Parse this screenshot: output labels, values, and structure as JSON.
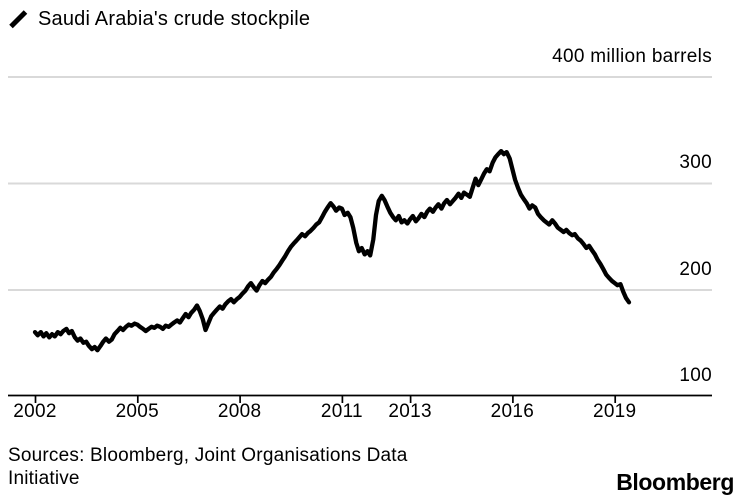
{
  "colors": {
    "background": "#ffffff",
    "line": "#000000",
    "grid": "#d9d9d9",
    "axis": "#000000",
    "text": "#000000"
  },
  "legend": {
    "marker": "diagonal-line-swatch",
    "label": "Saudi Arabia's crude stockpile"
  },
  "y_axis": {
    "labels": [
      {
        "value": 400,
        "text": "400 million barrels"
      },
      {
        "value": 300,
        "text": "300"
      },
      {
        "value": 200,
        "text": "200"
      },
      {
        "value": 100,
        "text": "100"
      }
    ]
  },
  "x_axis": {
    "ticks": [
      {
        "year": 2002,
        "label": "2002"
      },
      {
        "year": 2005,
        "label": "2005"
      },
      {
        "year": 2008,
        "label": "2008"
      },
      {
        "year": 2011,
        "label": "2011"
      },
      {
        "year": 2013,
        "label": "2013"
      },
      {
        "year": 2016,
        "label": "2016"
      },
      {
        "year": 2019,
        "label": "2019"
      }
    ]
  },
  "source": {
    "line1": "Sources: Bloomberg, Joint Organisations Data",
    "line2": "Initiative"
  },
  "branding": {
    "logo_text": "Bloomberg"
  },
  "chart_data": {
    "type": "line",
    "title": "Saudi Arabia's crude stockpile",
    "xlabel": "",
    "ylabel": "million barrels",
    "unit": "million barrels",
    "ylim": [
      100,
      400
    ],
    "x_range": [
      2002.0,
      2019.42
    ],
    "y_gridlines": [
      200,
      300,
      400
    ],
    "x_tick_years": [
      2002,
      2005,
      2008,
      2011,
      2013,
      2016,
      2019
    ],
    "grid": true,
    "legend_position": "top-left",
    "series": [
      {
        "name": "Saudi Arabia's crude stockpile",
        "color": "#000000",
        "points": [
          [
            2002.0,
            160
          ],
          [
            2002.08,
            157
          ],
          [
            2002.17,
            160
          ],
          [
            2002.25,
            156
          ],
          [
            2002.33,
            159
          ],
          [
            2002.42,
            155
          ],
          [
            2002.5,
            158
          ],
          [
            2002.58,
            156
          ],
          [
            2002.67,
            160
          ],
          [
            2002.75,
            158
          ],
          [
            2002.83,
            161
          ],
          [
            2002.92,
            163
          ],
          [
            2003.0,
            159
          ],
          [
            2003.08,
            161
          ],
          [
            2003.17,
            155
          ],
          [
            2003.25,
            152
          ],
          [
            2003.33,
            154
          ],
          [
            2003.42,
            150
          ],
          [
            2003.5,
            151
          ],
          [
            2003.58,
            147
          ],
          [
            2003.67,
            144
          ],
          [
            2003.75,
            146
          ],
          [
            2003.83,
            143
          ],
          [
            2003.92,
            147
          ],
          [
            2004.0,
            151
          ],
          [
            2004.08,
            154
          ],
          [
            2004.17,
            151
          ],
          [
            2004.25,
            153
          ],
          [
            2004.33,
            158
          ],
          [
            2004.42,
            161
          ],
          [
            2004.5,
            164
          ],
          [
            2004.58,
            162
          ],
          [
            2004.67,
            165
          ],
          [
            2004.75,
            167
          ],
          [
            2004.83,
            166
          ],
          [
            2004.92,
            168
          ],
          [
            2005.0,
            167
          ],
          [
            2005.08,
            165
          ],
          [
            2005.17,
            163
          ],
          [
            2005.25,
            161
          ],
          [
            2005.33,
            163
          ],
          [
            2005.42,
            165
          ],
          [
            2005.5,
            164
          ],
          [
            2005.58,
            166
          ],
          [
            2005.67,
            165
          ],
          [
            2005.75,
            163
          ],
          [
            2005.83,
            166
          ],
          [
            2005.92,
            165
          ],
          [
            2006.0,
            167
          ],
          [
            2006.08,
            169
          ],
          [
            2006.17,
            171
          ],
          [
            2006.25,
            169
          ],
          [
            2006.33,
            173
          ],
          [
            2006.42,
            177
          ],
          [
            2006.5,
            174
          ],
          [
            2006.58,
            178
          ],
          [
            2006.67,
            181
          ],
          [
            2006.75,
            185
          ],
          [
            2006.83,
            180
          ],
          [
            2006.92,
            172
          ],
          [
            2007.0,
            162
          ],
          [
            2007.08,
            168
          ],
          [
            2007.17,
            175
          ],
          [
            2007.25,
            178
          ],
          [
            2007.33,
            181
          ],
          [
            2007.42,
            184
          ],
          [
            2007.5,
            182
          ],
          [
            2007.58,
            186
          ],
          [
            2007.67,
            189
          ],
          [
            2007.75,
            191
          ],
          [
            2007.83,
            188
          ],
          [
            2007.92,
            191
          ],
          [
            2008.0,
            193
          ],
          [
            2008.08,
            196
          ],
          [
            2008.17,
            199
          ],
          [
            2008.25,
            203
          ],
          [
            2008.33,
            206
          ],
          [
            2008.42,
            202
          ],
          [
            2008.5,
            199
          ],
          [
            2008.58,
            204
          ],
          [
            2008.67,
            208
          ],
          [
            2008.75,
            206
          ],
          [
            2008.83,
            209
          ],
          [
            2008.92,
            212
          ],
          [
            2009.0,
            216
          ],
          [
            2009.08,
            219
          ],
          [
            2009.17,
            223
          ],
          [
            2009.25,
            227
          ],
          [
            2009.33,
            231
          ],
          [
            2009.42,
            236
          ],
          [
            2009.5,
            240
          ],
          [
            2009.58,
            243
          ],
          [
            2009.67,
            246
          ],
          [
            2009.75,
            249
          ],
          [
            2009.83,
            252
          ],
          [
            2009.92,
            250
          ],
          [
            2010.0,
            253
          ],
          [
            2010.08,
            255
          ],
          [
            2010.17,
            258
          ],
          [
            2010.25,
            261
          ],
          [
            2010.33,
            263
          ],
          [
            2010.42,
            268
          ],
          [
            2010.5,
            273
          ],
          [
            2010.58,
            277
          ],
          [
            2010.67,
            281
          ],
          [
            2010.75,
            278
          ],
          [
            2010.83,
            274
          ],
          [
            2010.92,
            277
          ],
          [
            2011.0,
            276
          ],
          [
            2011.08,
            270
          ],
          [
            2011.17,
            272
          ],
          [
            2011.25,
            268
          ],
          [
            2011.33,
            258
          ],
          [
            2011.42,
            244
          ],
          [
            2011.5,
            236
          ],
          [
            2011.58,
            239
          ],
          [
            2011.67,
            233
          ],
          [
            2011.75,
            236
          ],
          [
            2011.83,
            232
          ],
          [
            2011.92,
            247
          ],
          [
            2012.0,
            270
          ],
          [
            2012.08,
            283
          ],
          [
            2012.17,
            288
          ],
          [
            2012.25,
            284
          ],
          [
            2012.33,
            278
          ],
          [
            2012.42,
            272
          ],
          [
            2012.5,
            268
          ],
          [
            2012.58,
            265
          ],
          [
            2012.67,
            269
          ],
          [
            2012.75,
            263
          ],
          [
            2012.83,
            265
          ],
          [
            2012.92,
            262
          ],
          [
            2013.0,
            266
          ],
          [
            2013.08,
            269
          ],
          [
            2013.17,
            264
          ],
          [
            2013.25,
            267
          ],
          [
            2013.33,
            271
          ],
          [
            2013.42,
            268
          ],
          [
            2013.5,
            273
          ],
          [
            2013.58,
            276
          ],
          [
            2013.67,
            273
          ],
          [
            2013.75,
            277
          ],
          [
            2013.83,
            280
          ],
          [
            2013.92,
            276
          ],
          [
            2014.0,
            281
          ],
          [
            2014.08,
            284
          ],
          [
            2014.17,
            280
          ],
          [
            2014.25,
            283
          ],
          [
            2014.33,
            286
          ],
          [
            2014.42,
            290
          ],
          [
            2014.5,
            286
          ],
          [
            2014.58,
            291
          ],
          [
            2014.67,
            289
          ],
          [
            2014.75,
            287
          ],
          [
            2014.83,
            295
          ],
          [
            2014.92,
            304
          ],
          [
            2015.0,
            298
          ],
          [
            2015.08,
            303
          ],
          [
            2015.17,
            309
          ],
          [
            2015.25,
            313
          ],
          [
            2015.33,
            311
          ],
          [
            2015.42,
            319
          ],
          [
            2015.5,
            324
          ],
          [
            2015.58,
            327
          ],
          [
            2015.67,
            330
          ],
          [
            2015.75,
            327
          ],
          [
            2015.83,
            329
          ],
          [
            2015.92,
            323
          ],
          [
            2016.0,
            313
          ],
          [
            2016.08,
            303
          ],
          [
            2016.17,
            295
          ],
          [
            2016.25,
            289
          ],
          [
            2016.33,
            285
          ],
          [
            2016.42,
            281
          ],
          [
            2016.5,
            276
          ],
          [
            2016.58,
            279
          ],
          [
            2016.67,
            277
          ],
          [
            2016.75,
            271
          ],
          [
            2016.83,
            268
          ],
          [
            2016.92,
            265
          ],
          [
            2017.0,
            263
          ],
          [
            2017.08,
            261
          ],
          [
            2017.17,
            265
          ],
          [
            2017.25,
            262
          ],
          [
            2017.33,
            258
          ],
          [
            2017.42,
            256
          ],
          [
            2017.5,
            254
          ],
          [
            2017.58,
            256
          ],
          [
            2017.67,
            253
          ],
          [
            2017.75,
            251
          ],
          [
            2017.83,
            252
          ],
          [
            2017.92,
            248
          ],
          [
            2018.0,
            246
          ],
          [
            2018.08,
            243
          ],
          [
            2018.17,
            239
          ],
          [
            2018.25,
            241
          ],
          [
            2018.33,
            237
          ],
          [
            2018.42,
            233
          ],
          [
            2018.5,
            228
          ],
          [
            2018.58,
            224
          ],
          [
            2018.67,
            219
          ],
          [
            2018.75,
            214
          ],
          [
            2018.83,
            211
          ],
          [
            2018.92,
            208
          ],
          [
            2019.0,
            206
          ],
          [
            2019.08,
            204
          ],
          [
            2019.17,
            205
          ],
          [
            2019.25,
            198
          ],
          [
            2019.33,
            192
          ],
          [
            2019.42,
            188
          ]
        ]
      }
    ]
  }
}
